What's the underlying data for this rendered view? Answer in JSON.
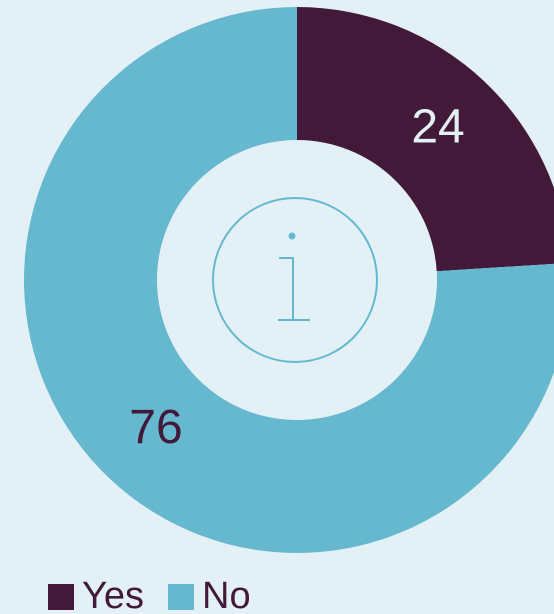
{
  "chart_data": {
    "type": "donut",
    "categories": [
      "Yes",
      "No"
    ],
    "values": [
      24,
      76
    ],
    "colors": [
      "#43193a",
      "#66b8cf"
    ]
  }
}
